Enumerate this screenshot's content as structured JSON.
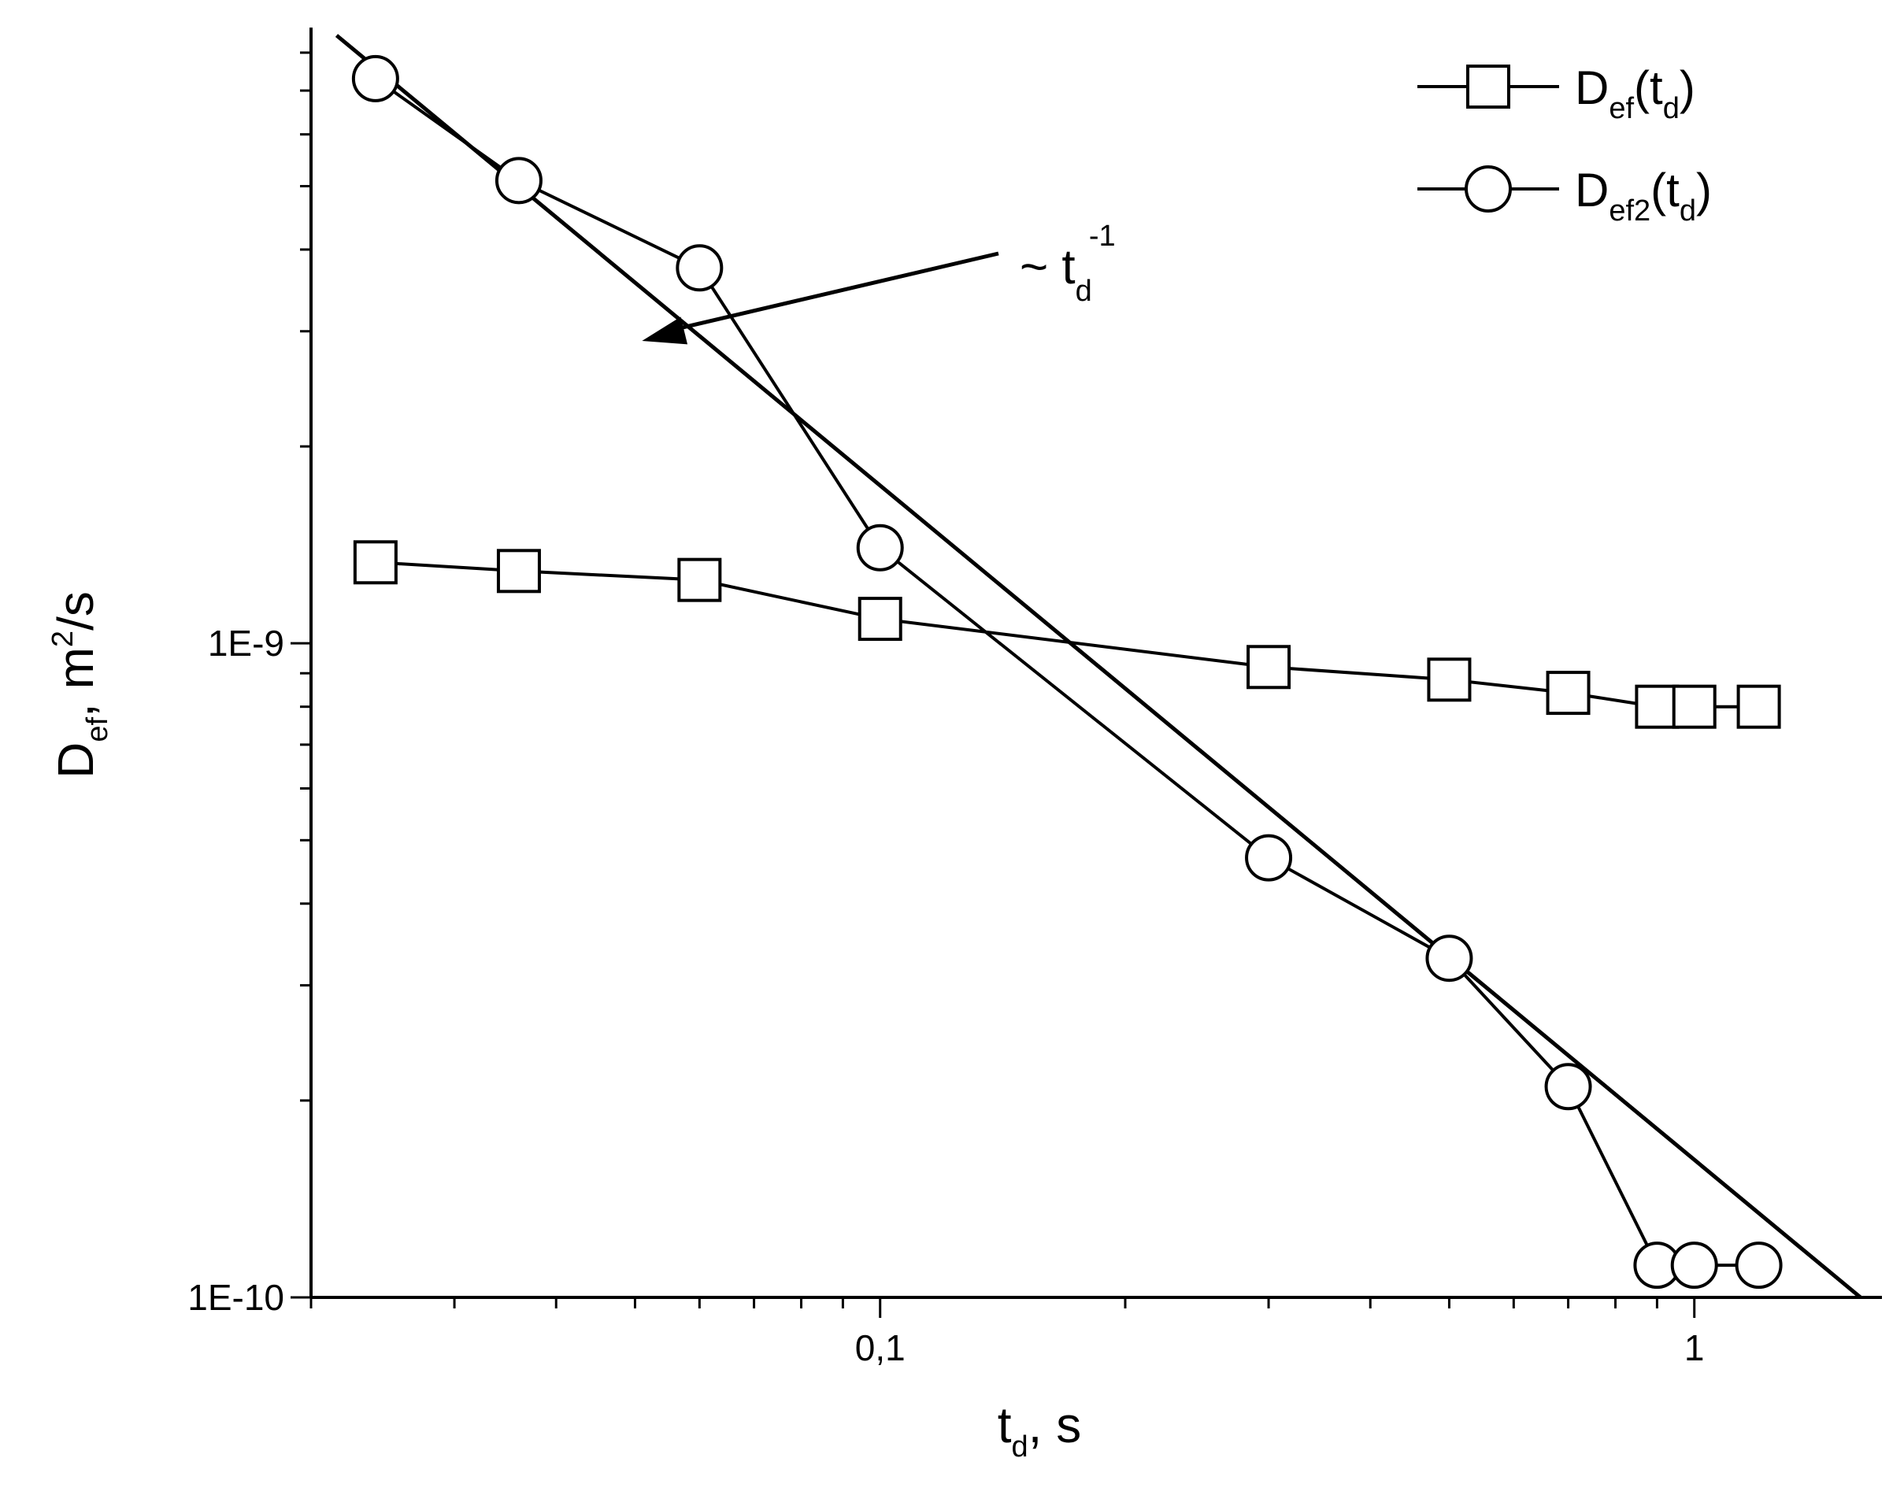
{
  "chart_data": {
    "type": "line",
    "x_scale": "log",
    "y_scale": "log",
    "xlim": [
      0.02,
      1.7
    ],
    "ylim": [
      1e-10,
      8.5e-09
    ],
    "x_ticks": [
      0.1,
      1
    ],
    "x_tick_labels": [
      "0,1",
      "1"
    ],
    "y_ticks": [
      1e-10,
      1e-09
    ],
    "y_tick_labels": [
      "1E-10",
      "1E-9"
    ],
    "xlabel": {
      "main": "t",
      "sub": "d",
      "rest": ", s"
    },
    "ylabel": {
      "main": "D",
      "sub": "ef",
      "mid": ", m",
      "sup": "2",
      "rest": "/s"
    },
    "legend_position": "top-right",
    "series": [
      {
        "name": {
          "main": "D",
          "sub": "ef",
          "open": "(t",
          "sub2": "d",
          "close": ")"
        },
        "marker": "square",
        "x": [
          0.024,
          0.036,
          0.06,
          0.1,
          0.3,
          0.5,
          0.7,
          0.9,
          1.0,
          1.2
        ],
        "y": [
          1.33e-09,
          1.29e-09,
          1.25e-09,
          1.09e-09,
          9.2e-10,
          8.8e-10,
          8.4e-10,
          8e-10,
          8e-10,
          8e-10
        ]
      },
      {
        "name": {
          "main": "D",
          "sub": "ef2",
          "open": "(t",
          "sub2": "d",
          "close": ")"
        },
        "marker": "circle",
        "x": [
          0.024,
          0.036,
          0.06,
          0.1,
          0.3,
          0.5,
          0.7,
          0.9,
          1.0,
          1.2
        ],
        "y": [
          7.3e-09,
          5.1e-09,
          3.75e-09,
          1.4e-09,
          4.7e-10,
          3.3e-10,
          2.1e-10,
          1.12e-10,
          1.12e-10,
          1.12e-10
        ]
      }
    ],
    "fit_line": {
      "x": [
        0.0215,
        1.6
      ],
      "y": [
        8.5e-09,
        1e-10
      ]
    },
    "annotation": {
      "text": "~ t",
      "sub": "d",
      "sup": "-1",
      "arrow_to": {
        "x": 0.051,
        "y": 2.9e-09
      }
    }
  }
}
